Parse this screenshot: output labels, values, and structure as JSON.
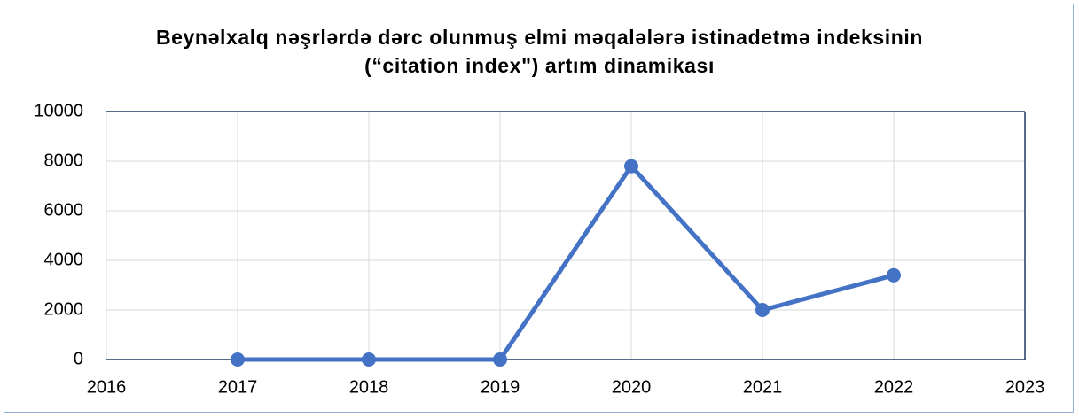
{
  "chart_data": {
    "type": "line",
    "title": "Beynəlxalq nəşrlərdə dərc olunmuş elmi məqalələrə istinadetmə indeksinin (“citation index\") artım dinamikası",
    "x": [
      2017,
      2018,
      2019,
      2020,
      2021,
      2022
    ],
    "values": [
      0,
      0,
      0,
      7800,
      2000,
      3400
    ],
    "color": "#4472c4",
    "xlim": [
      2016,
      2023
    ],
    "xticks": [
      2016,
      2017,
      2018,
      2019,
      2020,
      2021,
      2022,
      2023
    ],
    "ylim": [
      0,
      10000
    ],
    "yticks": [
      0,
      2000,
      4000,
      6000,
      8000,
      10000
    ],
    "grid": true
  }
}
